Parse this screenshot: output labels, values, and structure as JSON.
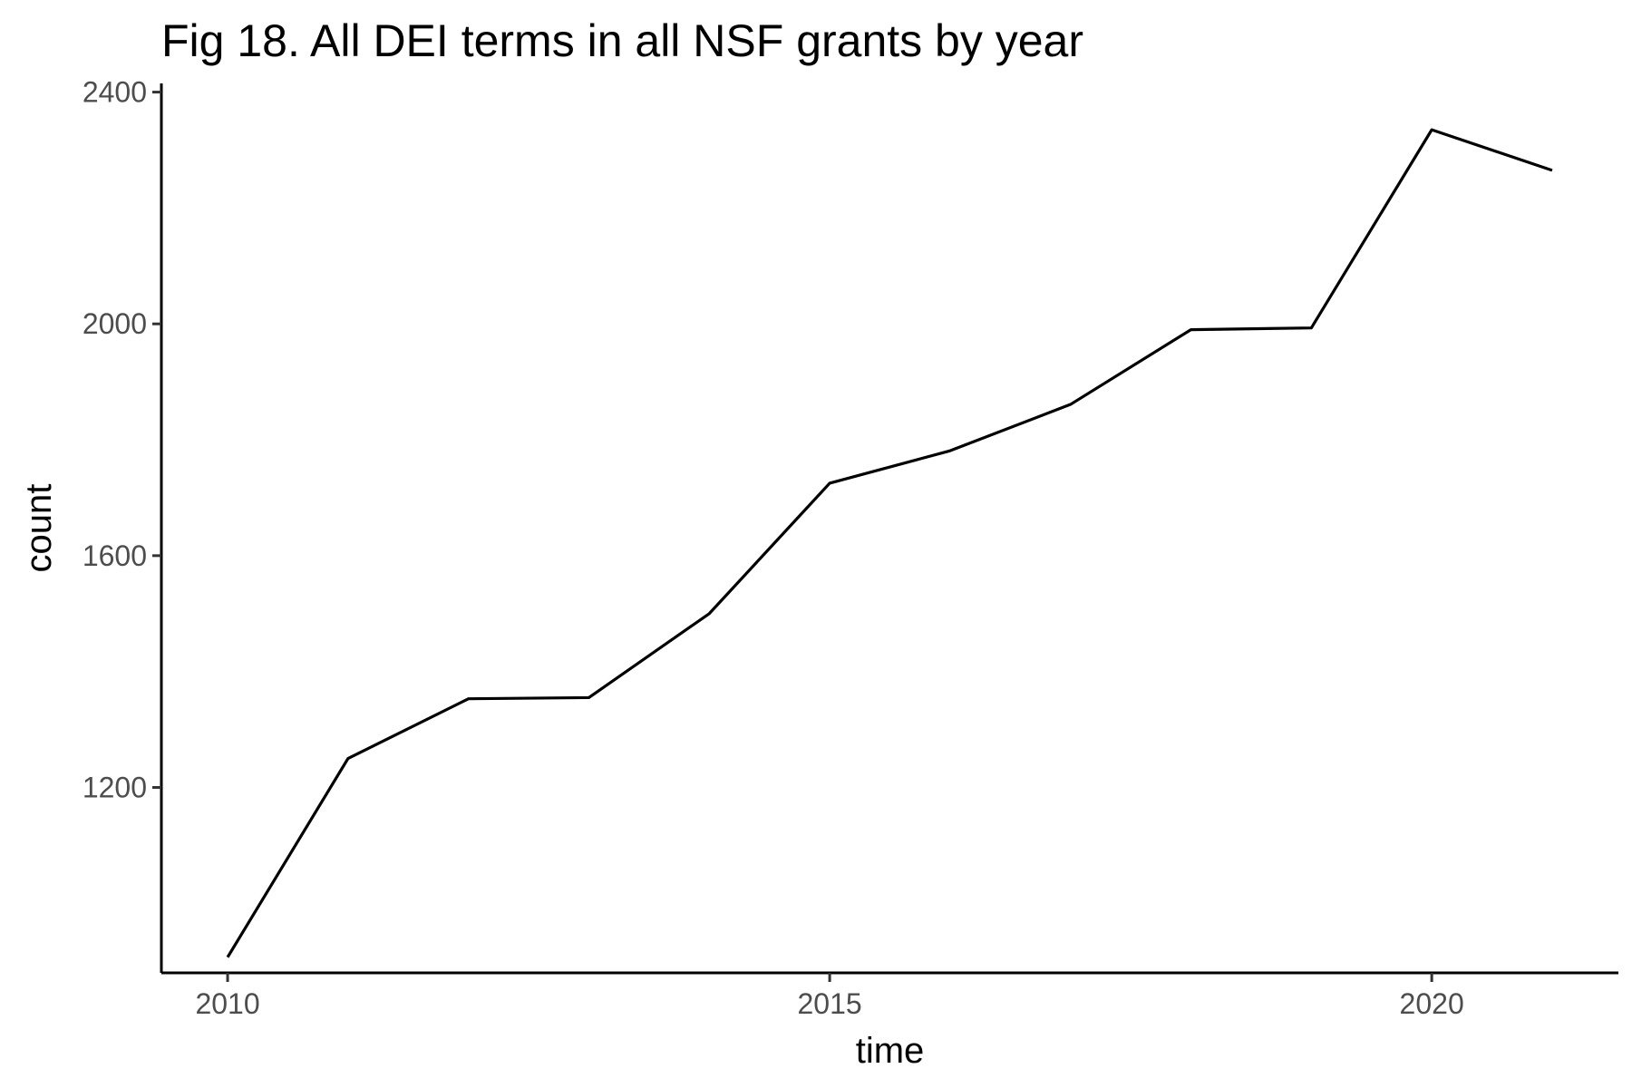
{
  "chart_data": {
    "type": "line",
    "title": "Fig 18. All DEI terms in all NSF grants by year",
    "xlabel": "time",
    "ylabel": "count",
    "xlim": [
      2009.45,
      2021.55
    ],
    "ylim": [
      880,
      2415
    ],
    "x_ticks": [
      2010,
      2015,
      2020
    ],
    "x_tick_labels": [
      "2010",
      "2015",
      "2020"
    ],
    "y_ticks": [
      1200,
      1600,
      2000,
      2400
    ],
    "y_tick_labels": [
      "1200",
      "1600",
      "2000",
      "2400"
    ],
    "grid": false,
    "legend": "none",
    "line_color": "#000000",
    "series": [
      {
        "x": [
          2010,
          2011,
          2012,
          2013,
          2014,
          2015,
          2016,
          2017,
          2018,
          2019,
          2020,
          2021
        ],
        "values": [
          907,
          1250,
          1353,
          1355,
          1500,
          1725,
          1781,
          1861,
          1990,
          1993,
          2335,
          2265
        ]
      }
    ]
  }
}
